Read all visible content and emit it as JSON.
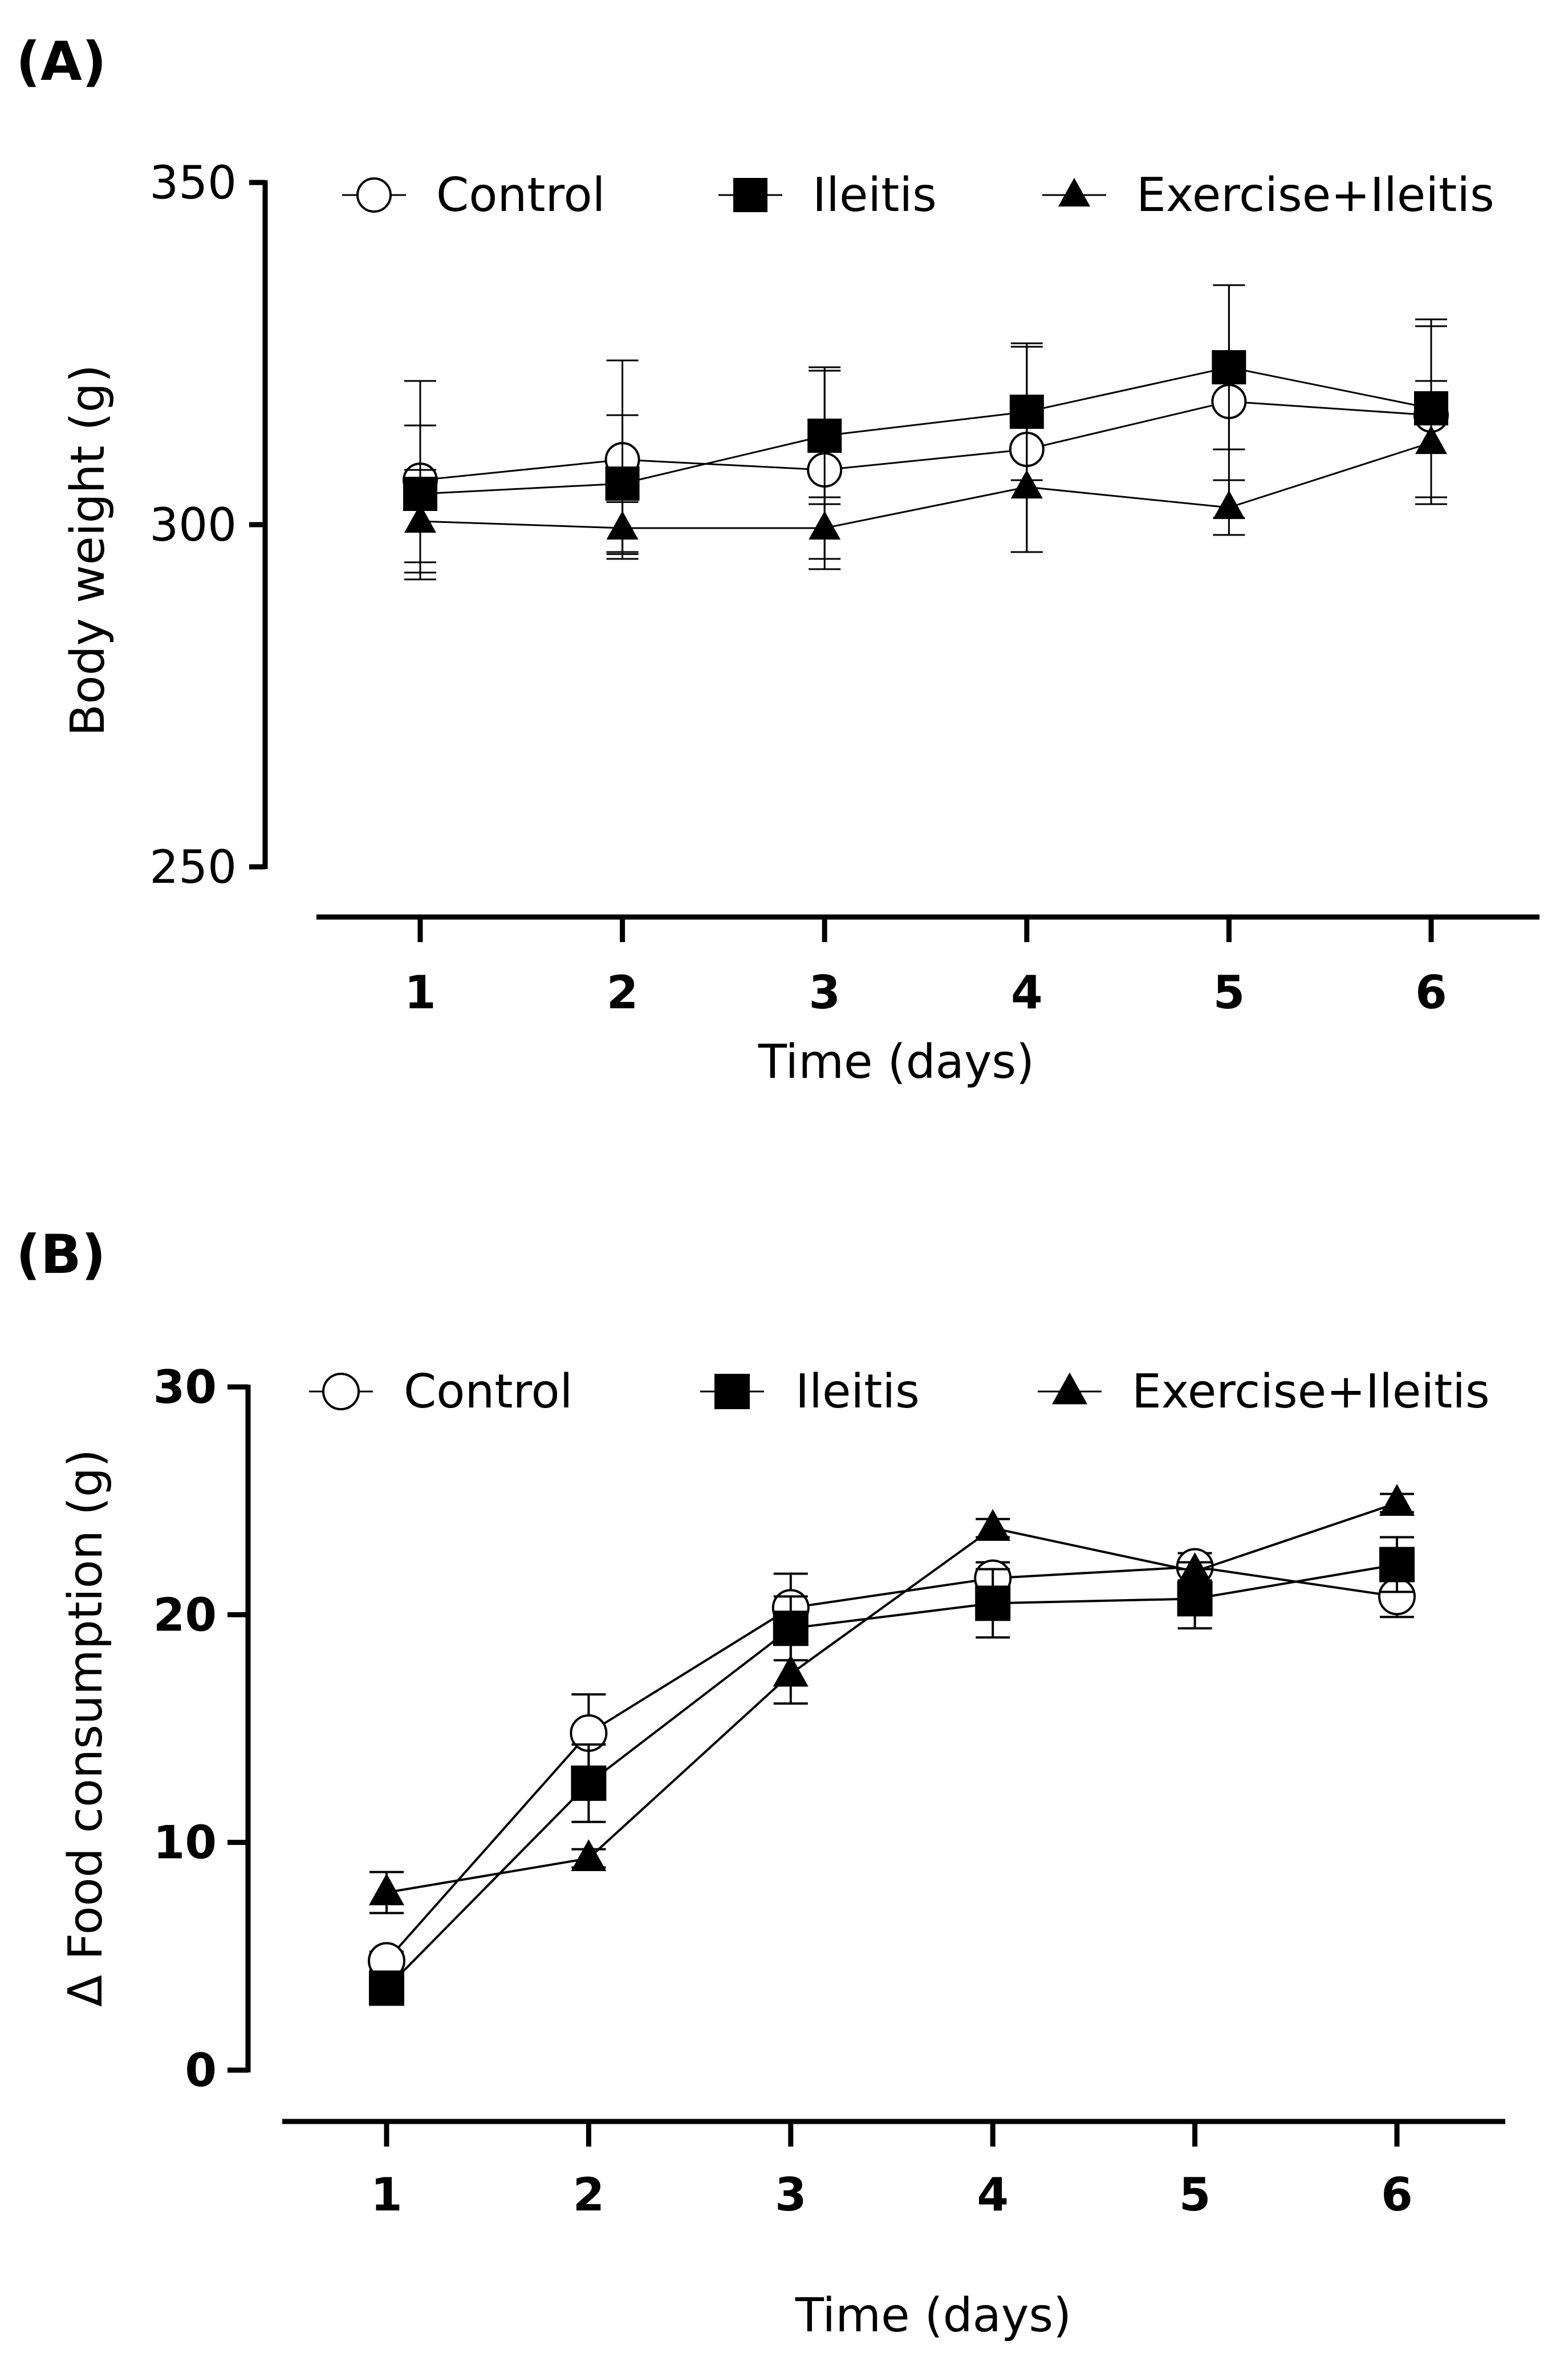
{
  "chart_data": [
    {
      "panel": "(A)",
      "type": "line",
      "xlabel": "Time (days)",
      "ylabel": "Body weight (g)",
      "x": [
        1,
        2,
        3,
        4,
        5,
        6
      ],
      "x_tick_labels": [
        "1",
        "2",
        "3",
        "4",
        "5",
        "6"
      ],
      "ylim": [
        250,
        350
      ],
      "y_ticks": [
        250,
        300,
        350
      ],
      "y_tick_labels": [
        "250",
        "300",
        "350"
      ],
      "grid": false,
      "legend_position": "top",
      "series": [
        {
          "name": "Control",
          "marker": "open-circle",
          "values": [
            306.5,
            309.5,
            308,
            311,
            318,
            316
          ],
          "errors": [
            14.5,
            14.5,
            14.5,
            15,
            17,
            13
          ]
        },
        {
          "name": "Ileitis",
          "marker": "filled-square",
          "values": [
            304.5,
            306,
            313,
            316.5,
            323,
            317
          ],
          "errors": [
            10,
            10,
            10,
            10,
            12,
            13
          ]
        },
        {
          "name": "Exercise+Ileitis",
          "marker": "filled-triangle",
          "values": [
            300.5,
            299.5,
            299.5,
            305.5,
            302.5,
            312
          ],
          "errors": [
            7.5,
            3.8,
            4.5,
            9.5,
            4,
            9
          ]
        }
      ]
    },
    {
      "panel": "(B)",
      "type": "line",
      "xlabel": "Time (days)",
      "ylabel": "Δ Food consumption (g)",
      "x": [
        1,
        2,
        3,
        4,
        5,
        6
      ],
      "x_tick_labels": [
        "1",
        "2",
        "3",
        "4",
        "5",
        "6"
      ],
      "ylim": [
        0,
        30
      ],
      "y_ticks": [
        0,
        10,
        20,
        30
      ],
      "y_tick_labels": [
        "0",
        "10",
        "20",
        "30"
      ],
      "grid": false,
      "legend_position": "top",
      "series": [
        {
          "name": "Control",
          "marker": "open-circle",
          "values": [
            4.8,
            14.8,
            20.3,
            21.6,
            22.1,
            20.8
          ],
          "errors": [
            0.4,
            1.7,
            1.5,
            0.7,
            0.6,
            0.9
          ]
        },
        {
          "name": "Ileitis",
          "marker": "filled-square",
          "values": [
            3.6,
            12.6,
            19.4,
            20.5,
            20.7,
            22.2
          ],
          "errors": [
            0.4,
            1.7,
            1.4,
            1.5,
            1.3,
            1.2
          ]
        },
        {
          "name": "Exercise+Ileitis",
          "marker": "filled-triangle",
          "values": [
            7.8,
            9.3,
            17.4,
            23.8,
            21.9,
            24.9
          ],
          "errors": [
            0.9,
            0.4,
            1.3,
            0.4,
            0.4,
            0.4
          ]
        }
      ]
    }
  ]
}
